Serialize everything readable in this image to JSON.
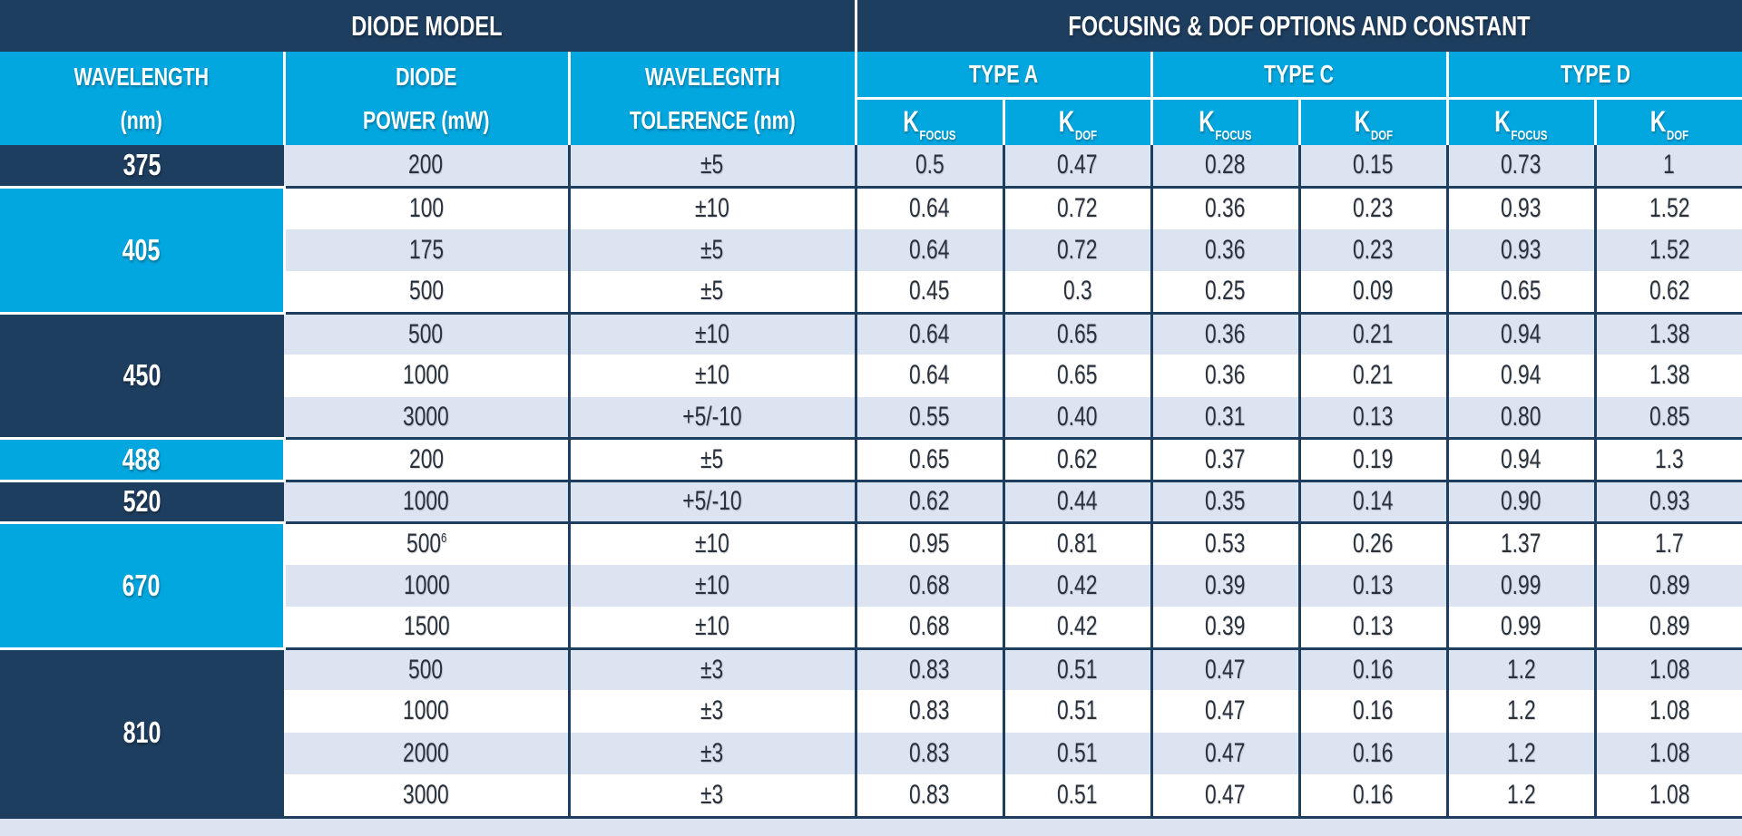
{
  "colors": {
    "navy": "#1e3e5f",
    "blue": "#03a7e0",
    "shade": "#dbe4f0"
  },
  "header": {
    "diode_model_title": "DIODE MODEL",
    "focusing_title": "FOCUSING & DOF OPTIONS AND CONSTANT",
    "columns": {
      "wavelength": [
        "WAVELENGTH",
        "(nm)"
      ],
      "power": [
        "DIODE",
        "POWER (mW)"
      ],
      "tolerance": [
        "WAVELEGNTH",
        "TOLERENCE (nm)"
      ]
    },
    "types": [
      "TYPE A",
      "TYPE C",
      "TYPE D"
    ],
    "k_base": "K",
    "k_focus_sub": "FOCUS",
    "k_dof_sub": "DOF"
  },
  "groups": [
    {
      "wavelength": "375",
      "color": "navy",
      "rows": [
        {
          "power": "200",
          "tolerance": "±5",
          "values": [
            "0.5",
            "0.47",
            "0.28",
            "0.15",
            "0.73",
            "1"
          ]
        }
      ]
    },
    {
      "wavelength": "405",
      "color": "blue",
      "rows": [
        {
          "power": "100",
          "tolerance": "±10",
          "values": [
            "0.64",
            "0.72",
            "0.36",
            "0.23",
            "0.93",
            "1.52"
          ]
        },
        {
          "power": "175",
          "tolerance": "±5",
          "values": [
            "0.64",
            "0.72",
            "0.36",
            "0.23",
            "0.93",
            "1.52"
          ]
        },
        {
          "power": "500",
          "tolerance": "±5",
          "values": [
            "0.45",
            "0.3",
            "0.25",
            "0.09",
            "0.65",
            "0.62"
          ]
        }
      ]
    },
    {
      "wavelength": "450",
      "color": "navy",
      "rows": [
        {
          "power": "500",
          "tolerance": "±10",
          "values": [
            "0.64",
            "0.65",
            "0.36",
            "0.21",
            "0.94",
            "1.38"
          ]
        },
        {
          "power": "1000",
          "tolerance": "±10",
          "values": [
            "0.64",
            "0.65",
            "0.36",
            "0.21",
            "0.94",
            "1.38"
          ]
        },
        {
          "power": "3000",
          "tolerance": "+5/-10",
          "values": [
            "0.55",
            "0.40",
            "0.31",
            "0.13",
            "0.80",
            "0.85"
          ]
        }
      ]
    },
    {
      "wavelength": "488",
      "color": "blue",
      "rows": [
        {
          "power": "200",
          "tolerance": "±5",
          "values": [
            "0.65",
            "0.62",
            "0.37",
            "0.19",
            "0.94",
            "1.3"
          ]
        }
      ]
    },
    {
      "wavelength": "520",
      "color": "navy",
      "rows": [
        {
          "power": "1000",
          "tolerance": "+5/-10",
          "values": [
            "0.62",
            "0.44",
            "0.35",
            "0.14",
            "0.90",
            "0.93"
          ]
        }
      ]
    },
    {
      "wavelength": "670",
      "color": "blue",
      "rows": [
        {
          "power": "500",
          "power_sup": "6",
          "tolerance": "±10",
          "values": [
            "0.95",
            "0.81",
            "0.53",
            "0.26",
            "1.37",
            "1.7"
          ]
        },
        {
          "power": "1000",
          "tolerance": "±10",
          "values": [
            "0.68",
            "0.42",
            "0.39",
            "0.13",
            "0.99",
            "0.89"
          ]
        },
        {
          "power": "1500",
          "tolerance": "±10",
          "values": [
            "0.68",
            "0.42",
            "0.39",
            "0.13",
            "0.99",
            "0.89"
          ]
        }
      ]
    },
    {
      "wavelength": "810",
      "color": "navy",
      "rows": [
        {
          "power": "500",
          "tolerance": "±3",
          "values": [
            "0.83",
            "0.51",
            "0.47",
            "0.16",
            "1.2",
            "1.08"
          ]
        },
        {
          "power": "1000",
          "tolerance": "±3",
          "values": [
            "0.83",
            "0.51",
            "0.47",
            "0.16",
            "1.2",
            "1.08"
          ]
        },
        {
          "power": "2000",
          "tolerance": "±3",
          "values": [
            "0.83",
            "0.51",
            "0.47",
            "0.16",
            "1.2",
            "1.08"
          ]
        },
        {
          "power": "3000",
          "tolerance": "±3",
          "values": [
            "0.83",
            "0.51",
            "0.47",
            "0.16",
            "1.2",
            "1.08"
          ]
        }
      ]
    }
  ]
}
